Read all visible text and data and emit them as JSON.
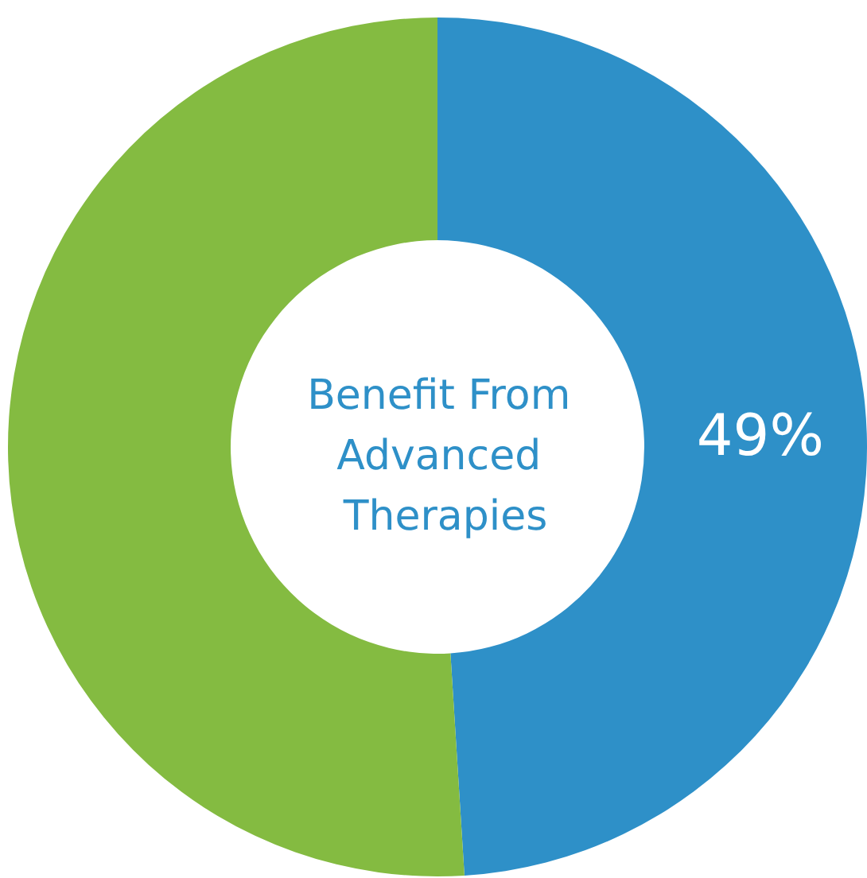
{
  "chart_data": {
    "type": "donut",
    "title": "Benefit From Advanced Therapies",
    "categories": [
      null,
      null
    ],
    "values": [
      49,
      51
    ],
    "colors": [
      "#2e90c8",
      "#84bb41"
    ],
    "value_labels": [
      "49%",
      null
    ]
  }
}
